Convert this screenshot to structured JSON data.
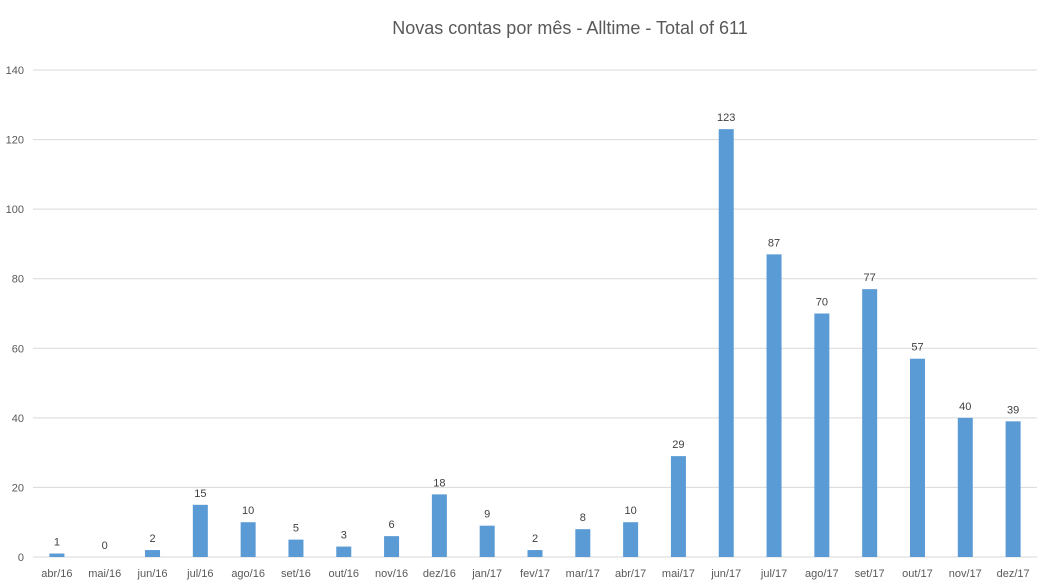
{
  "chart_data": {
    "type": "bar",
    "title": "Novas contas por mês - Alltime - Total of 611",
    "categories": [
      "abr/16",
      "mai/16",
      "jun/16",
      "jul/16",
      "ago/16",
      "set/16",
      "out/16",
      "nov/16",
      "dez/16",
      "jan/17",
      "fev/17",
      "mar/17",
      "abr/17",
      "mai/17",
      "jun/17",
      "jul/17",
      "ago/17",
      "set/17",
      "out/17",
      "nov/17",
      "dez/17"
    ],
    "values": [
      1,
      0,
      2,
      15,
      10,
      5,
      3,
      6,
      18,
      9,
      2,
      8,
      10,
      29,
      123,
      87,
      70,
      77,
      57,
      40,
      39
    ],
    "yticks": [
      0,
      20,
      40,
      60,
      80,
      100,
      120,
      140
    ],
    "ylim": [
      0,
      140
    ],
    "xlabel": "",
    "ylabel": "",
    "grid": true,
    "legend": "none",
    "bar_color": "#5b9bd5",
    "data_labels": true
  }
}
